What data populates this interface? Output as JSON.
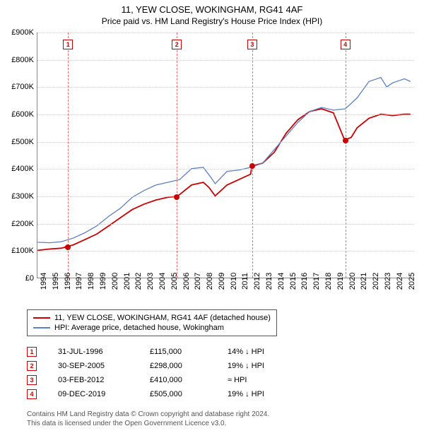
{
  "title": "11, YEW CLOSE, WOKINGHAM, RG41 4AF",
  "subtitle": "Price paid vs. HM Land Registry's House Price Index (HPI)",
  "chart": {
    "type": "line",
    "background_color": "#ffffff",
    "grid_color": "#cccccc",
    "x_years": [
      1994,
      1995,
      1996,
      1997,
      1998,
      1999,
      2000,
      2001,
      2002,
      2003,
      2004,
      2005,
      2006,
      2007,
      2008,
      2009,
      2010,
      2011,
      2012,
      2013,
      2014,
      2015,
      2016,
      2017,
      2018,
      2019,
      2020,
      2021,
      2022,
      2023,
      2024,
      2025
    ],
    "xlim": [
      1994,
      2025.8
    ],
    "ylim": [
      0,
      900000
    ],
    "ytick_step": 100000,
    "ytick_labels": [
      "£0",
      "£100K",
      "£200K",
      "£300K",
      "£400K",
      "£500K",
      "£600K",
      "£700K",
      "£800K",
      "£900K"
    ],
    "series": [
      {
        "name": "property",
        "color": "#cc0000",
        "line_width": 1.8,
        "points": [
          [
            1994.0,
            100000
          ],
          [
            1995.0,
            105000
          ],
          [
            1996.0,
            108000
          ],
          [
            1996.58,
            115000
          ],
          [
            1997.0,
            120000
          ],
          [
            1998.0,
            140000
          ],
          [
            1999.0,
            160000
          ],
          [
            2000.0,
            190000
          ],
          [
            2001.0,
            220000
          ],
          [
            2002.0,
            250000
          ],
          [
            2003.0,
            270000
          ],
          [
            2004.0,
            285000
          ],
          [
            2005.0,
            295000
          ],
          [
            2005.75,
            298000
          ],
          [
            2006.0,
            305000
          ],
          [
            2007.0,
            340000
          ],
          [
            2008.0,
            350000
          ],
          [
            2008.5,
            330000
          ],
          [
            2009.0,
            300000
          ],
          [
            2010.0,
            340000
          ],
          [
            2011.0,
            360000
          ],
          [
            2012.0,
            380000
          ],
          [
            2012.1,
            410000
          ],
          [
            2013.0,
            420000
          ],
          [
            2014.0,
            460000
          ],
          [
            2015.0,
            530000
          ],
          [
            2016.0,
            580000
          ],
          [
            2017.0,
            610000
          ],
          [
            2018.0,
            620000
          ],
          [
            2019.0,
            605000
          ],
          [
            2019.94,
            505000
          ],
          [
            2020.5,
            515000
          ],
          [
            2021.0,
            550000
          ],
          [
            2022.0,
            585000
          ],
          [
            2023.0,
            600000
          ],
          [
            2024.0,
            595000
          ],
          [
            2025.0,
            600000
          ],
          [
            2025.5,
            600000
          ]
        ]
      },
      {
        "name": "hpi",
        "color": "#5b7fc7",
        "line_width": 1.3,
        "points": [
          [
            1994.0,
            130000
          ],
          [
            1995.0,
            128000
          ],
          [
            1996.0,
            132000
          ],
          [
            1997.0,
            145000
          ],
          [
            1998.0,
            165000
          ],
          [
            1999.0,
            190000
          ],
          [
            2000.0,
            225000
          ],
          [
            2001.0,
            255000
          ],
          [
            2002.0,
            295000
          ],
          [
            2003.0,
            320000
          ],
          [
            2004.0,
            340000
          ],
          [
            2005.0,
            350000
          ],
          [
            2006.0,
            360000
          ],
          [
            2007.0,
            400000
          ],
          [
            2008.0,
            405000
          ],
          [
            2008.7,
            365000
          ],
          [
            2009.0,
            345000
          ],
          [
            2010.0,
            390000
          ],
          [
            2011.0,
            395000
          ],
          [
            2012.0,
            405000
          ],
          [
            2013.0,
            420000
          ],
          [
            2014.0,
            470000
          ],
          [
            2015.0,
            520000
          ],
          [
            2016.0,
            570000
          ],
          [
            2017.0,
            610000
          ],
          [
            2018.0,
            625000
          ],
          [
            2019.0,
            615000
          ],
          [
            2020.0,
            620000
          ],
          [
            2021.0,
            660000
          ],
          [
            2022.0,
            720000
          ],
          [
            2023.0,
            735000
          ],
          [
            2023.5,
            700000
          ],
          [
            2024.0,
            715000
          ],
          [
            2025.0,
            730000
          ],
          [
            2025.5,
            720000
          ]
        ]
      }
    ],
    "sale_markers": [
      {
        "n": "1",
        "year": 1996.58,
        "price": 115000
      },
      {
        "n": "2",
        "year": 2005.75,
        "price": 298000
      },
      {
        "n": "3",
        "year": 2012.1,
        "price": 410000
      },
      {
        "n": "4",
        "year": 2019.94,
        "price": 505000
      }
    ],
    "marker_vline_color": "#ff6666"
  },
  "legend": {
    "items": [
      {
        "color": "#cc0000",
        "label": "11, YEW CLOSE, WOKINGHAM, RG41 4AF (detached house)"
      },
      {
        "color": "#5b7fc7",
        "label": "HPI: Average price, detached house, Wokingham"
      }
    ]
  },
  "sales_table": [
    {
      "n": "1",
      "date": "31-JUL-1996",
      "price": "£115,000",
      "diff": "14% ↓ HPI"
    },
    {
      "n": "2",
      "date": "30-SEP-2005",
      "price": "£298,000",
      "diff": "19% ↓ HPI"
    },
    {
      "n": "3",
      "date": "03-FEB-2012",
      "price": "£410,000",
      "diff": "≈ HPI"
    },
    {
      "n": "4",
      "date": "09-DEC-2019",
      "price": "£505,000",
      "diff": "19% ↓ HPI"
    }
  ],
  "footer": {
    "line1": "Contains HM Land Registry data © Crown copyright and database right 2024.",
    "line2": "This data is licensed under the Open Government Licence v3.0."
  }
}
